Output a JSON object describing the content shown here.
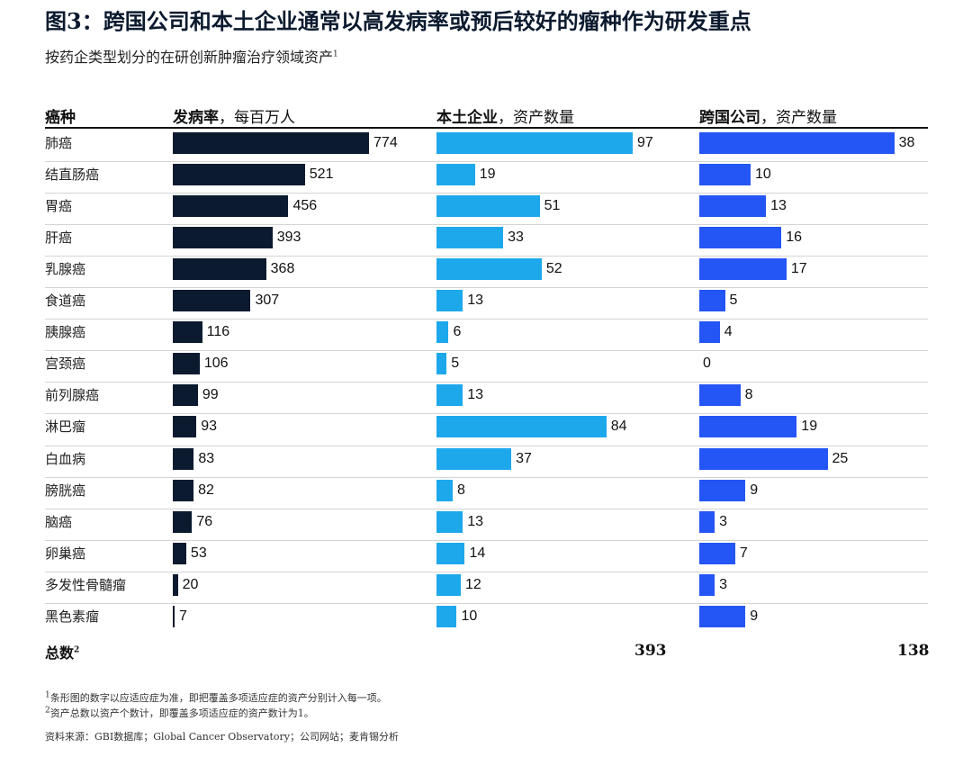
{
  "title": "图3：跨国公司和本土企业通常以高发病率或预后较好的瘤种作为研发重点",
  "subtitle": "按药企类型划分的在研创新肿瘤治疗领域资产",
  "subtitle_sup": "1",
  "headers": {
    "category": "癌种",
    "incidence_bold": "发病率",
    "incidence_rest": "，每百万人",
    "local_bold": "本土企业",
    "local_rest": "，资产数量",
    "mnc_bold": "跨国公司",
    "mnc_rest": "，资产数量"
  },
  "colors": {
    "incidence": "#0b1a2e",
    "local": "#1ea8ec",
    "mnc": "#2455f5"
  },
  "chart_data": {
    "type": "bar",
    "orientation": "horizontal",
    "categories": [
      "肺癌",
      "结直肠癌",
      "胃癌",
      "肝癌",
      "乳腺癌",
      "食道癌",
      "胰腺癌",
      "宫颈癌",
      "前列腺癌",
      "淋巴瘤",
      "白血病",
      "膀胱癌",
      "脑癌",
      "卵巢癌",
      "多发性骨髓瘤",
      "黑色素瘤"
    ],
    "series": [
      {
        "key": "incidence",
        "values": [
          774,
          521,
          456,
          393,
          368,
          307,
          116,
          106,
          99,
          93,
          83,
          82,
          76,
          53,
          20,
          7
        ]
      },
      {
        "key": "local",
        "values": [
          97,
          19,
          51,
          33,
          52,
          13,
          6,
          5,
          13,
          84,
          37,
          8,
          13,
          14,
          12,
          10
        ]
      },
      {
        "key": "mnc",
        "values": [
          38,
          10,
          13,
          16,
          17,
          5,
          4,
          0,
          8,
          19,
          25,
          9,
          3,
          7,
          3,
          9
        ]
      }
    ],
    "grid": false,
    "legend": "none"
  },
  "totals": {
    "label": "总数",
    "label_sup": "2",
    "local": "393",
    "mnc": "138"
  },
  "footnotes": {
    "note1_sup": "1",
    "note1": "条形图的数字以应适应症为准，即把覆盖多项适应症的资产分别计入每一项。",
    "note2_sup": "2",
    "note2": "资产总数以资产个数计，即覆盖多项适应症的资产数计为1。",
    "source": "资料来源：GBI数据库；Global Cancer Observatory；公司网站；麦肯锡分析"
  }
}
